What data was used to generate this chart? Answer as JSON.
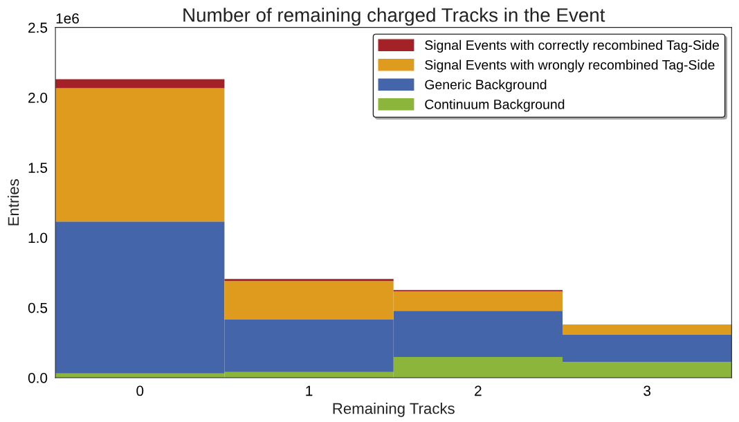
{
  "chart_data": {
    "type": "bar",
    "title": "Number of remaining charged Tracks in the Event",
    "xlabel": "Remaining Tracks",
    "ylabel": "Entries",
    "annotations": [
      "1e6"
    ],
    "categories": [
      "0",
      "1",
      "2",
      "3"
    ],
    "stacked": true,
    "series": [
      {
        "name": "Continuum Background",
        "color": "#8cb53c",
        "values": [
          0.03,
          0.04,
          0.148,
          0.113
        ]
      },
      {
        "name": "Generic Background",
        "color": "#4565ab",
        "values": [
          1.084,
          0.374,
          0.33,
          0.193
        ]
      },
      {
        "name": "Signal Events with wrongly recombined Tag-Side",
        "color": "#df9b1e",
        "values": [
          0.952,
          0.276,
          0.138,
          0.069
        ]
      },
      {
        "name": "Signal Events with correctly recombined Tag-Side",
        "color": "#a42227",
        "values": [
          0.064,
          0.015,
          0.01,
          0.003
        ]
      }
    ],
    "ylim": [
      0,
      2.5
    ],
    "yticks": [
      {
        "value": 0,
        "label": "0.0"
      },
      0.5,
      {
        "value": 1,
        "label": "1.0"
      },
      1.5,
      {
        "value": 2,
        "label": "2.0"
      },
      2.5
    ],
    "grid": false,
    "legend": "top right"
  }
}
